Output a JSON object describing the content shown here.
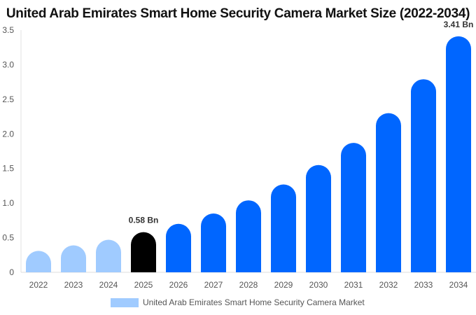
{
  "chart_data": {
    "type": "bar",
    "title": "United Arab Emirates Smart Home Security Camera Market Size (2022-2034)",
    "categories": [
      "2022",
      "2023",
      "2024",
      "2025",
      "2026",
      "2027",
      "2028",
      "2029",
      "2030",
      "2031",
      "2032",
      "2033",
      "2034"
    ],
    "series": [
      {
        "name": "United Arab Emirates Smart Home Security Camera Market",
        "values": [
          0.31,
          0.39,
          0.47,
          0.58,
          0.7,
          0.85,
          1.04,
          1.27,
          1.55,
          1.87,
          2.3,
          2.79,
          3.41
        ]
      }
    ],
    "data_labels": {
      "2025": "0.58 Bn",
      "2034": "3.41 Bn"
    },
    "ylim": [
      0,
      3.5
    ],
    "yticks": [
      "0",
      "0.5",
      "1.0",
      "1.5",
      "2.0",
      "2.5",
      "3.0",
      "3.5"
    ],
    "grid": false,
    "legend_placement": "bottom",
    "colors": {
      "historical": "#a0cbff",
      "current": "#000000",
      "forecast": "#0066ff"
    }
  }
}
